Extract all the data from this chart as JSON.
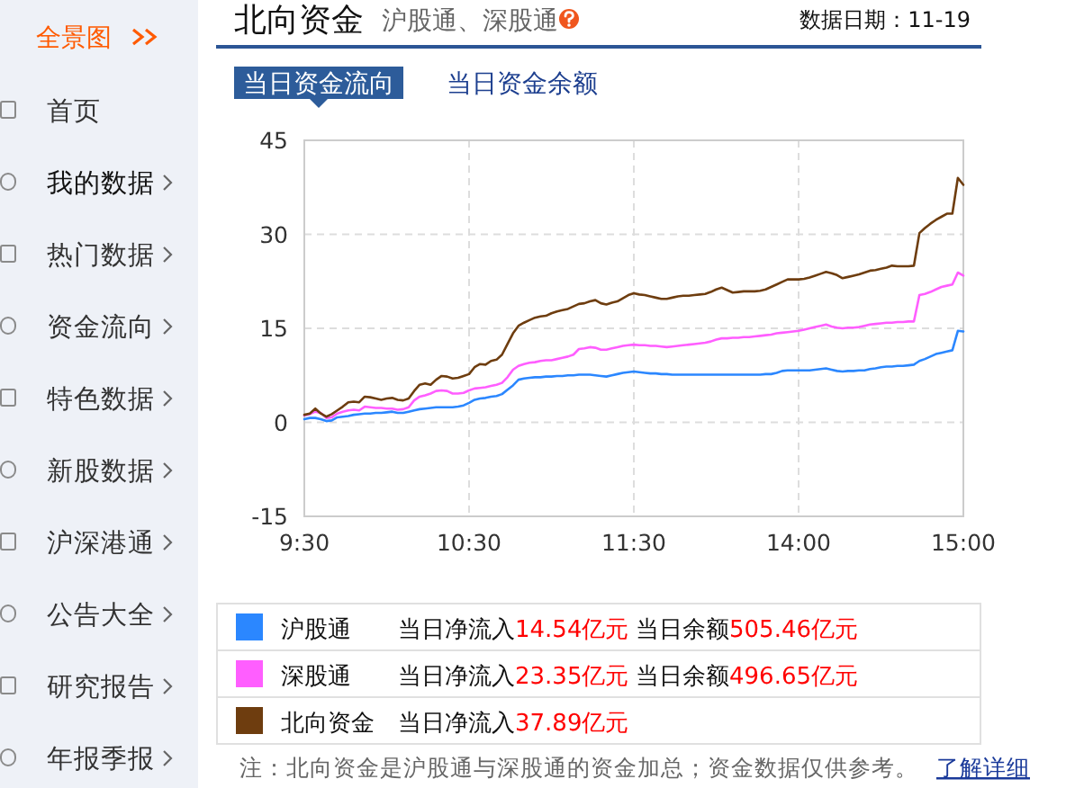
{
  "chart_data": {
    "type": "line",
    "title": "北向资金",
    "subtitle": "沪股通、深股通",
    "categories": [
      "9:30",
      null,
      null,
      null,
      null,
      null,
      null,
      null,
      null,
      null,
      null,
      null,
      null,
      null,
      null,
      null,
      null,
      null,
      null,
      null,
      null,
      null,
      null,
      null,
      null,
      null,
      null,
      null,
      null,
      null,
      "10:30",
      null,
      null,
      null,
      null,
      null,
      null,
      null,
      null,
      null,
      null,
      null,
      null,
      null,
      null,
      null,
      null,
      null,
      null,
      null,
      null,
      null,
      null,
      null,
      null,
      null,
      null,
      null,
      null,
      null,
      "11:30",
      null,
      null,
      null,
      null,
      null,
      null,
      null,
      null,
      null,
      null,
      null,
      null,
      null,
      null,
      null,
      null,
      null,
      null,
      null,
      null,
      null,
      null,
      null,
      null,
      null,
      null,
      null,
      null,
      null,
      "14:00",
      null,
      null,
      null,
      null,
      null,
      null,
      null,
      null,
      null,
      null,
      null,
      null,
      null,
      null,
      null,
      null,
      null,
      null,
      null,
      null,
      null,
      null,
      null,
      null,
      null,
      null,
      null,
      null,
      null,
      "15:00"
    ],
    "ylim": [
      -15,
      45
    ],
    "yticks": [
      -15,
      0,
      15,
      30,
      45
    ],
    "grid": true,
    "legend": "bottom",
    "series": [
      {
        "name": "沪股通",
        "color": "#2b87ff",
        "values": [
          0.5,
          0.7,
          0.7,
          0.5,
          0.2,
          0.3,
          0.8,
          0.9,
          1.0,
          1.2,
          1.3,
          1.4,
          1.4,
          1.5,
          1.5,
          1.6,
          1.7,
          1.5,
          1.5,
          1.7,
          1.9,
          2.1,
          2.2,
          2.3,
          2.4,
          2.4,
          2.4,
          2.4,
          2.5,
          2.7,
          3.1,
          3.6,
          3.8,
          3.9,
          4.1,
          4.2,
          4.5,
          5.2,
          5.9,
          6.8,
          7.0,
          7.1,
          7.2,
          7.2,
          7.3,
          7.3,
          7.4,
          7.4,
          7.5,
          7.5,
          7.6,
          7.6,
          7.6,
          7.5,
          7.4,
          7.3,
          7.5,
          7.7,
          7.9,
          8.0,
          8.1,
          8.0,
          7.9,
          7.8,
          7.8,
          7.7,
          7.7,
          7.6,
          7.6,
          7.6,
          7.6,
          7.6,
          7.6,
          7.6,
          7.6,
          7.6,
          7.6,
          7.6,
          7.6,
          7.6,
          7.6,
          7.6,
          7.6,
          7.6,
          7.7,
          7.7,
          7.9,
          8.2,
          8.3,
          8.3,
          8.3,
          8.3,
          8.3,
          8.4,
          8.5,
          8.6,
          8.4,
          8.2,
          8.1,
          8.2,
          8.2,
          8.3,
          8.3,
          8.5,
          8.6,
          8.8,
          8.9,
          8.9,
          9.0,
          9.0,
          9.1,
          9.2,
          9.8,
          10.1,
          10.5,
          10.9,
          11.1,
          11.3,
          11.5,
          14.6,
          14.5
        ]
      },
      {
        "name": "深股通",
        "color": "#ff5eff",
        "values": [
          1.1,
          1.3,
          1.7,
          1.5,
          0.7,
          0.8,
          1.4,
          1.7,
          1.9,
          2.0,
          1.9,
          2.5,
          2.4,
          2.3,
          2.3,
          2.2,
          2.2,
          2.0,
          2.1,
          2.4,
          3.5,
          4.1,
          4.3,
          4.6,
          5.0,
          5.1,
          5.0,
          4.6,
          4.6,
          4.7,
          5.1,
          5.4,
          5.5,
          5.6,
          5.8,
          6.0,
          6.3,
          7.2,
          8.4,
          9.0,
          9.3,
          9.5,
          9.6,
          9.8,
          9.9,
          9.9,
          10.1,
          10.3,
          10.5,
          10.8,
          11.7,
          11.8,
          12.0,
          11.9,
          11.6,
          11.6,
          11.8,
          12.0,
          12.2,
          12.3,
          12.4,
          12.3,
          12.3,
          12.2,
          12.2,
          12.1,
          12.0,
          12.1,
          12.2,
          12.3,
          12.4,
          12.5,
          12.6,
          12.7,
          12.9,
          13.2,
          13.4,
          13.4,
          13.5,
          13.5,
          13.6,
          13.6,
          13.7,
          13.8,
          13.9,
          14.0,
          14.2,
          14.3,
          14.4,
          14.5,
          14.6,
          14.8,
          15.0,
          15.2,
          15.4,
          15.6,
          15.3,
          15.1,
          15.0,
          15.1,
          15.1,
          15.2,
          15.4,
          15.6,
          15.7,
          15.8,
          15.9,
          15.9,
          16.0,
          16.0,
          16.1,
          16.1,
          20.3,
          20.5,
          20.8,
          21.2,
          21.6,
          21.8,
          22.0,
          23.9,
          23.4
        ]
      },
      {
        "name": "北向资金",
        "color": "#6e3d0f",
        "values": [
          1.2,
          1.4,
          2.2,
          1.4,
          0.9,
          1.3,
          1.9,
          2.5,
          3.2,
          3.3,
          3.2,
          4.1,
          4.0,
          3.8,
          3.6,
          3.8,
          3.9,
          3.6,
          3.5,
          3.8,
          5.0,
          6.0,
          6.2,
          6.0,
          6.8,
          7.4,
          7.3,
          7.0,
          7.1,
          7.4,
          7.7,
          8.8,
          9.3,
          9.2,
          9.8,
          10.0,
          10.8,
          12.5,
          14.2,
          15.4,
          15.9,
          16.3,
          16.7,
          16.9,
          17.0,
          17.4,
          17.7,
          17.9,
          18.1,
          18.5,
          18.9,
          19.0,
          19.3,
          19.5,
          19.0,
          18.8,
          19.1,
          19.3,
          19.8,
          20.3,
          20.6,
          20.4,
          20.3,
          20.1,
          19.9,
          19.7,
          19.7,
          19.9,
          20.1,
          20.2,
          20.2,
          20.3,
          20.4,
          20.5,
          20.8,
          21.2,
          21.5,
          21.1,
          20.7,
          20.8,
          20.9,
          20.9,
          20.9,
          21.0,
          21.2,
          21.6,
          22.0,
          22.4,
          22.8,
          22.8,
          22.8,
          22.9,
          23.1,
          23.4,
          23.7,
          24.0,
          23.8,
          23.5,
          23.0,
          23.2,
          23.4,
          23.6,
          23.9,
          24.2,
          24.3,
          24.5,
          24.7,
          25.0,
          24.9,
          24.9,
          24.9,
          25.0,
          30.2,
          31.0,
          31.7,
          32.3,
          32.8,
          33.3,
          33.3,
          39.0,
          37.9
        ]
      }
    ],
    "annotations": [
      "数据日期：11-19",
      "当日资金流向",
      "当日资金余额",
      "当日净流入14.54亿元",
      "当日余额505.46亿元",
      "当日净流入23.35亿元",
      "当日余额496.65亿元",
      "当日净流入37.89亿元",
      "注：北向资金是沪股通与深股通的资金加总；资金数据仅供参考。",
      "了解详细",
      "全景图",
      "首页",
      "我的数据",
      "热门数据",
      "资金流向",
      "特色数据",
      "新股数据",
      "沪深港通",
      "公告大全",
      "研究报告",
      "年报季报"
    ]
  }
}
